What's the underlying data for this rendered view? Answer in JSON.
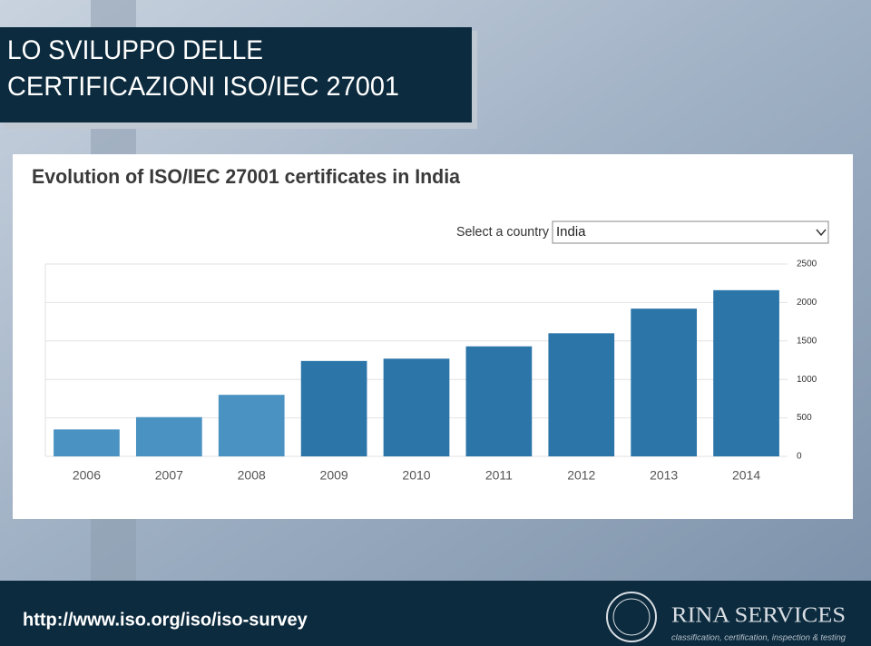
{
  "slide_title": [
    "LO SVILUPPO DELLE",
    "CERTIFICAZIONI ISO/IEC 27001"
  ],
  "chart_data": {
    "type": "bar",
    "title": "Evolution of ISO/IEC 27001 certificates in India",
    "selector_label": "Select a country",
    "selector_value": "India",
    "categories": [
      "2006",
      "2007",
      "2008",
      "2009",
      "2010",
      "2011",
      "2012",
      "2013",
      "2014"
    ],
    "values": [
      350,
      510,
      800,
      1240,
      1270,
      1430,
      1600,
      1920,
      2160
    ],
    "colors": [
      "#4a92c2",
      "#4a92c2",
      "#4a92c2",
      "#2b75a8",
      "#2b75a8",
      "#2b75a8",
      "#2b75a8",
      "#2b75a8",
      "#2b75a8"
    ],
    "ylim": [
      0,
      2500
    ],
    "yticks": [
      0,
      500,
      1000,
      1500,
      2000,
      2500
    ],
    "yaxis_side": "right",
    "grid": true
  },
  "footer": {
    "url": "http://www.iso.org/iso/iso-survey",
    "brand": "RINA SERVICES",
    "tagline": "classification, certification, inspection & testing"
  }
}
